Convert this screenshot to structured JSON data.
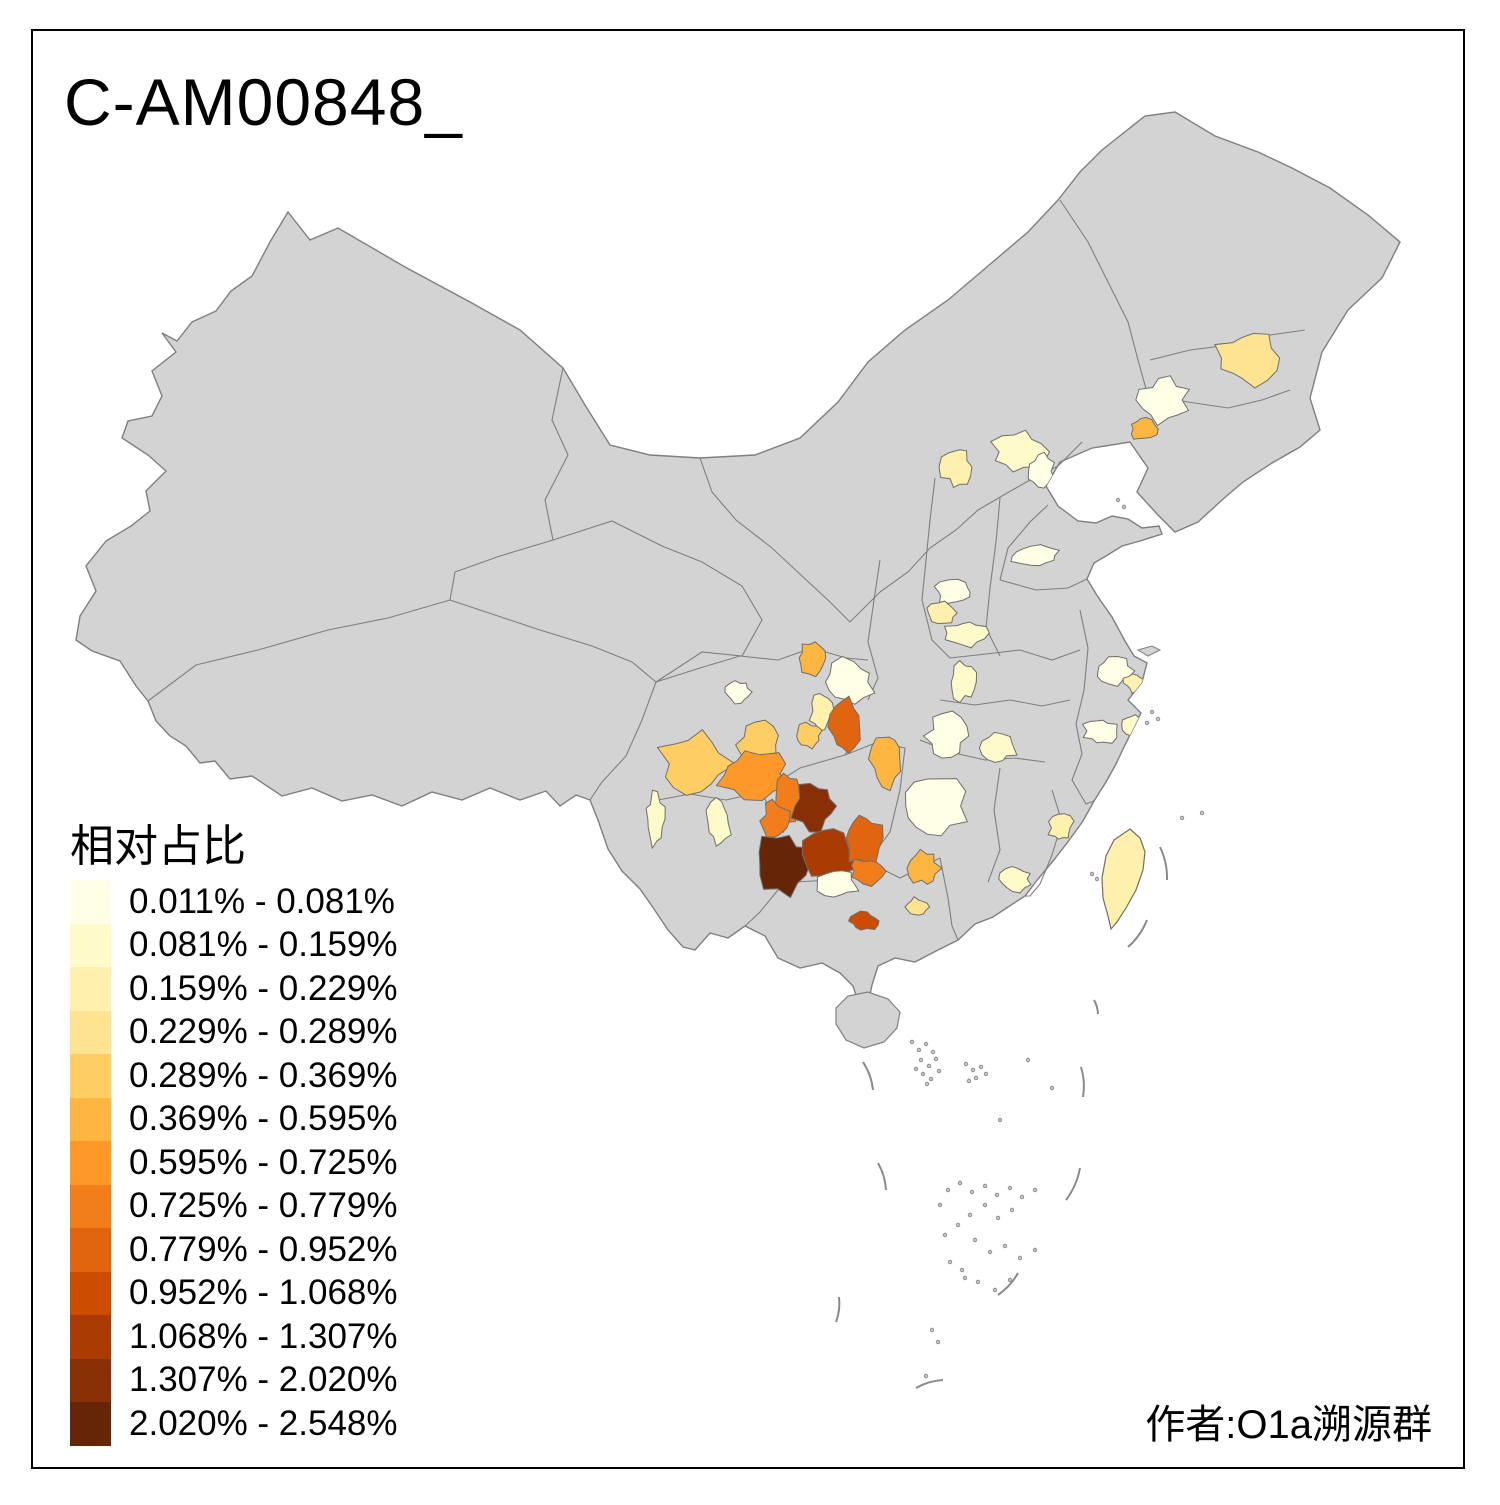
{
  "title": "C-AM00848_",
  "attribution": "作者:O1a溯源群",
  "legend": {
    "title": "相对占比",
    "classes": [
      {
        "label": "0.011% - 0.081%",
        "color": "#FFFFE5"
      },
      {
        "label": "0.081% - 0.159%",
        "color": "#FFFACA"
      },
      {
        "label": "0.159% - 0.229%",
        "color": "#FFF0AE"
      },
      {
        "label": "0.229% - 0.289%",
        "color": "#FEE391"
      },
      {
        "label": "0.289% - 0.369%",
        "color": "#FECE65"
      },
      {
        "label": "0.369% - 0.595%",
        "color": "#FEB642"
      },
      {
        "label": "0.595% - 0.725%",
        "color": "#FE9929"
      },
      {
        "label": "0.725% - 0.779%",
        "color": "#F27E1B"
      },
      {
        "label": "0.779% - 0.952%",
        "color": "#E1640E"
      },
      {
        "label": "0.952% - 1.068%",
        "color": "#CC4C02"
      },
      {
        "label": "1.068% - 1.307%",
        "color": "#AA3C03"
      },
      {
        "label": "1.307% - 2.020%",
        "color": "#882F05"
      },
      {
        "label": "2.020% - 2.548%",
        "color": "#662506"
      }
    ]
  },
  "map": {
    "land_color": "#D3D3D3",
    "border_color": "#7F7F7F",
    "region_border_color": "#6E6E6E",
    "sea_color": "#FFFFFF",
    "regions": [
      {
        "id": "r1",
        "class": 4
      },
      {
        "id": "r2",
        "class": 1
      },
      {
        "id": "r3",
        "class": 6
      },
      {
        "id": "r4",
        "class": 2
      },
      {
        "id": "r5",
        "class": 1
      },
      {
        "id": "r6",
        "class": 3
      },
      {
        "id": "r7",
        "class": 1
      },
      {
        "id": "r8",
        "class": 1
      },
      {
        "id": "r9",
        "class": 3
      },
      {
        "id": "r10",
        "class": 2
      },
      {
        "id": "r11",
        "class": 2
      },
      {
        "id": "r12",
        "class": 1
      },
      {
        "id": "r13",
        "class": 2
      },
      {
        "id": "r14",
        "class": 1
      },
      {
        "id": "r15",
        "class": 3
      },
      {
        "id": "r16",
        "class": 1
      },
      {
        "id": "r17",
        "class": 2
      },
      {
        "id": "r18",
        "class": 3
      },
      {
        "id": "r19",
        "class": 2
      },
      {
        "id": "r21",
        "class": 1
      },
      {
        "id": "r22",
        "class": 6
      },
      {
        "id": "r23",
        "class": 4
      },
      {
        "id": "r24",
        "class": 1
      },
      {
        "id": "r25",
        "class": 6
      },
      {
        "id": "r26",
        "class": 1
      },
      {
        "id": "r27",
        "class": 3
      },
      {
        "id": "r28",
        "class": 5
      },
      {
        "id": "r29",
        "class": 9
      },
      {
        "id": "r30",
        "class": 6
      },
      {
        "id": "r31",
        "class": 5
      },
      {
        "id": "r32",
        "class": 5
      },
      {
        "id": "r33",
        "class": 7
      },
      {
        "id": "r34",
        "class": 8
      },
      {
        "id": "r35",
        "class": 2
      },
      {
        "id": "r36",
        "class": 2
      },
      {
        "id": "r37",
        "class": 8
      },
      {
        "id": "r38",
        "class": 12
      },
      {
        "id": "r39",
        "class": 13
      },
      {
        "id": "r40",
        "class": 11
      },
      {
        "id": "r41",
        "class": 9
      },
      {
        "id": "r42",
        "class": 8
      },
      {
        "id": "r43",
        "class": 1
      },
      {
        "id": "r44",
        "class": 10
      }
    ],
    "taiwan_class": 3
  },
  "chart_data": {
    "type": "choropleth",
    "title": "C-AM00848_",
    "legend_title": "相对占比",
    "unit": "%",
    "breaks": [
      0.011,
      0.081,
      0.159,
      0.229,
      0.289,
      0.369,
      0.595,
      0.725,
      0.779,
      0.952,
      1.068,
      1.307,
      2.02,
      2.548
    ],
    "palette": [
      "#FFFFE5",
      "#FFFACA",
      "#FFF0AE",
      "#FEE391",
      "#FECE65",
      "#FEB642",
      "#FE9929",
      "#F27E1B",
      "#E1640E",
      "#CC4C02",
      "#AA3C03",
      "#882F05",
      "#662506"
    ]
  }
}
